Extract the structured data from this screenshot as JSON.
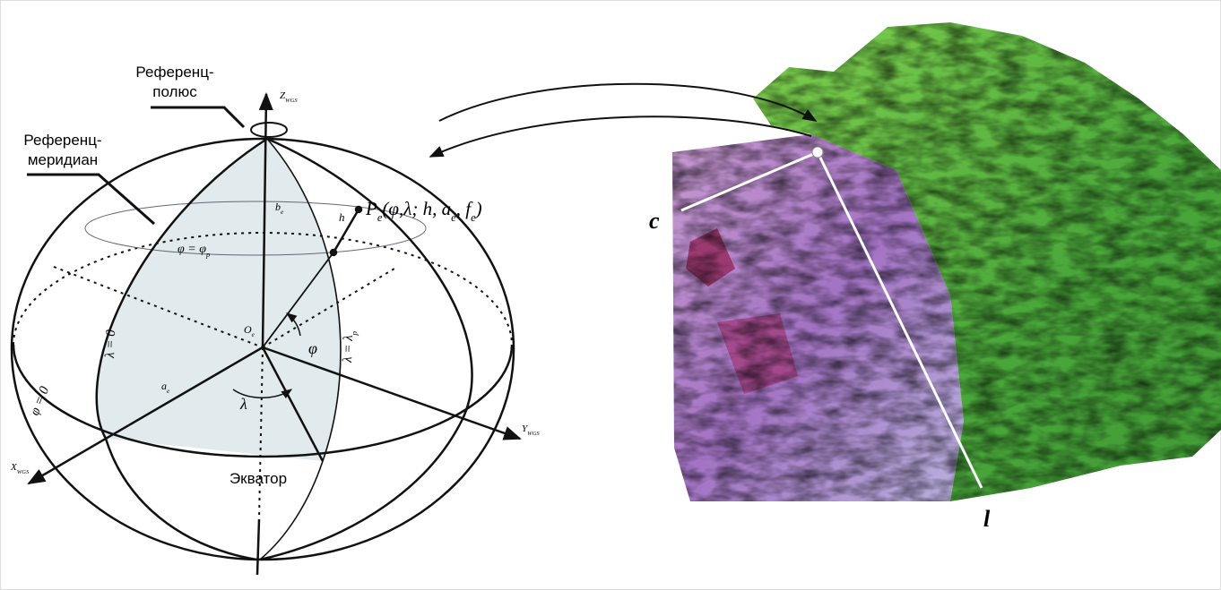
{
  "pole_label": [
    "Референц-",
    "полюс"
  ],
  "meridian_label": [
    "Референц-",
    "меридиан"
  ],
  "equator_label": "Экватор",
  "z_axis": [
    {
      "t": "Z"
    },
    {
      "t": "WGS",
      "sub": true
    }
  ],
  "x_axis": [
    {
      "t": "X"
    },
    {
      "t": "WGS",
      "sub": true
    }
  ],
  "y_axis": [
    {
      "t": "Y"
    },
    {
      "t": "WGS",
      "sub": true
    }
  ],
  "origin": [
    {
      "t": "O"
    },
    {
      "t": "e",
      "sub": true
    }
  ],
  "semi_major": [
    {
      "t": "a"
    },
    {
      "t": "e",
      "sub": true
    }
  ],
  "semi_minor": [
    {
      "t": "b"
    },
    {
      "t": "e",
      "sub": true
    }
  ],
  "height": [
    {
      "t": "h"
    }
  ],
  "point": [
    {
      "t": "P"
    },
    {
      "t": "e",
      "sub": true
    },
    {
      "t": "(φ,λ; h, a"
    },
    {
      "t": "e",
      "sub": true
    },
    {
      "t": ", f"
    },
    {
      "t": "e",
      "sub": true
    },
    {
      "t": ")"
    }
  ],
  "parallel": [
    {
      "t": "φ = φ"
    },
    {
      "t": "p",
      "sub": true
    }
  ],
  "meridian_zero": [
    {
      "t": "λ = 0"
    }
  ],
  "meridian_p": [
    {
      "t": "λ = λ"
    },
    {
      "t": "p",
      "sub": true
    }
  ],
  "equator_zero": [
    {
      "t": "φ = 0"
    }
  ],
  "latitude": [
    {
      "t": "φ"
    }
  ],
  "longitude": [
    {
      "t": "λ"
    }
  ],
  "image_left": "c",
  "image_bottom": "l"
}
